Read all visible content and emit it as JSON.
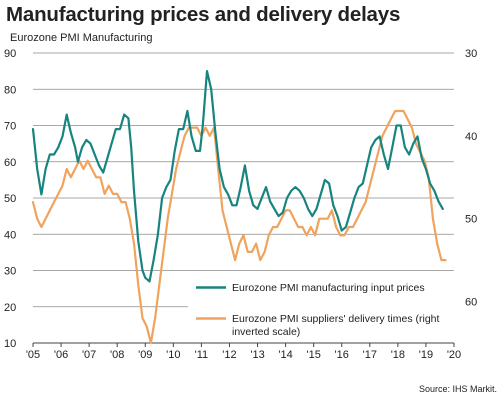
{
  "title": "Manufacturing prices and delivery delays",
  "subtitle": "Eurozone PMI Manufacturing",
  "source": "Source: IHS Markit.",
  "colors": {
    "input_prices": "#17847f",
    "delivery_times": "#f0a35e",
    "grid": "#8a8a8a",
    "axis": "#444444"
  },
  "chart_data": {
    "type": "line",
    "x_ticks": [
      "'05",
      "'06",
      "'07",
      "'08",
      "'09",
      "'10",
      "'11",
      "'12",
      "'13",
      "'14",
      "'15",
      "'16",
      "'17",
      "'18",
      "'19",
      "'20"
    ],
    "ylim_left": [
      10,
      90
    ],
    "y_ticks_left": [
      10,
      20,
      30,
      40,
      50,
      60,
      70,
      80,
      90
    ],
    "ylim_right_inverted": [
      30,
      65
    ],
    "y_ticks_right": [
      30,
      40,
      50,
      60
    ],
    "grid": true,
    "legend_position": "bottom-right",
    "series": [
      {
        "name": "Eurozone PMI manufacturing input prices",
        "axis": "left",
        "x": [
          2005.0,
          2005.15,
          2005.3,
          2005.45,
          2005.6,
          2005.75,
          2005.9,
          2006.05,
          2006.2,
          2006.35,
          2006.5,
          2006.6,
          2006.75,
          2006.9,
          2007.05,
          2007.2,
          2007.35,
          2007.5,
          2007.65,
          2007.8,
          2007.95,
          2008.1,
          2008.25,
          2008.4,
          2008.5,
          2008.6,
          2008.75,
          2008.9,
          2009.0,
          2009.15,
          2009.3,
          2009.45,
          2009.6,
          2009.75,
          2009.9,
          2010.05,
          2010.2,
          2010.35,
          2010.5,
          2010.65,
          2010.8,
          2010.95,
          2011.05,
          2011.2,
          2011.35,
          2011.5,
          2011.65,
          2011.8,
          2011.95,
          2012.1,
          2012.25,
          2012.4,
          2012.55,
          2012.7,
          2012.85,
          2013.0,
          2013.15,
          2013.3,
          2013.45,
          2013.6,
          2013.75,
          2013.9,
          2014.05,
          2014.2,
          2014.35,
          2014.5,
          2014.65,
          2014.8,
          2014.95,
          2015.1,
          2015.25,
          2015.4,
          2015.55,
          2015.7,
          2015.85,
          2016.0,
          2016.15,
          2016.3,
          2016.45,
          2016.6,
          2016.75,
          2016.9,
          2017.05,
          2017.2,
          2017.35,
          2017.5,
          2017.65,
          2017.8,
          2017.95,
          2018.1,
          2018.25,
          2018.4,
          2018.55,
          2018.7,
          2018.85,
          2019.0,
          2019.15,
          2019.3,
          2019.45,
          2019.6
        ],
        "values": [
          69,
          58,
          51,
          58,
          62,
          62,
          64,
          67,
          73,
          68,
          64,
          60,
          64,
          66,
          65,
          62,
          59,
          57,
          61,
          65,
          69,
          69,
          73,
          72,
          64,
          52,
          38,
          30,
          28,
          27,
          33,
          40,
          50,
          53,
          55,
          63,
          69,
          69,
          74,
          67,
          63,
          63,
          70,
          85,
          80,
          68,
          58,
          53,
          51,
          48,
          48,
          53,
          59,
          52,
          48,
          47,
          50,
          53,
          49,
          47,
          45,
          46,
          50,
          52,
          53,
          52,
          50,
          47,
          45,
          47,
          51,
          55,
          54,
          48,
          45,
          41,
          42,
          46,
          50,
          53,
          54,
          59,
          64,
          66,
          67,
          62,
          58,
          64,
          70,
          70,
          64,
          62,
          65,
          67,
          61,
          58,
          54,
          52,
          49,
          47
        ]
      },
      {
        "name": "Eurozone PMI suppliers' delivery times (right inverted scale)",
        "axis": "right",
        "x": [
          2005.0,
          2005.15,
          2005.3,
          2005.45,
          2005.6,
          2005.75,
          2005.9,
          2006.05,
          2006.2,
          2006.35,
          2006.5,
          2006.65,
          2006.8,
          2006.95,
          2007.1,
          2007.25,
          2007.4,
          2007.55,
          2007.7,
          2007.85,
          2008.0,
          2008.15,
          2008.3,
          2008.45,
          2008.6,
          2008.75,
          2008.9,
          2009.05,
          2009.2,
          2009.35,
          2009.5,
          2009.65,
          2009.8,
          2009.95,
          2010.1,
          2010.25,
          2010.4,
          2010.55,
          2010.7,
          2010.85,
          2011.0,
          2011.15,
          2011.3,
          2011.45,
          2011.6,
          2011.75,
          2011.9,
          2012.05,
          2012.2,
          2012.35,
          2012.5,
          2012.65,
          2012.8,
          2012.95,
          2013.1,
          2013.25,
          2013.4,
          2013.55,
          2013.7,
          2013.85,
          2014.0,
          2014.15,
          2014.3,
          2014.45,
          2014.6,
          2014.75,
          2014.9,
          2015.05,
          2015.2,
          2015.35,
          2015.5,
          2015.65,
          2015.8,
          2015.95,
          2016.1,
          2016.25,
          2016.4,
          2016.55,
          2016.7,
          2016.85,
          2017.0,
          2017.15,
          2017.3,
          2017.45,
          2017.6,
          2017.75,
          2017.9,
          2018.05,
          2018.2,
          2018.35,
          2018.5,
          2018.65,
          2018.8,
          2018.95,
          2019.1,
          2019.25,
          2019.4,
          2019.55,
          2019.7
        ],
        "values": [
          48,
          50,
          51,
          50,
          49,
          48,
          47,
          46,
          44,
          45,
          44,
          43,
          44,
          43,
          44,
          45,
          45,
          47,
          46,
          47,
          47,
          48,
          48,
          50,
          53,
          58,
          62,
          63,
          65,
          62,
          58,
          54,
          50,
          47,
          44,
          42,
          40,
          39,
          39,
          39,
          40,
          39,
          40,
          39,
          44,
          49,
          51,
          53,
          55,
          53,
          52,
          54,
          54,
          53,
          55,
          54,
          52,
          51,
          51,
          50,
          49,
          49,
          50,
          51,
          51,
          52,
          51,
          52,
          50,
          50,
          50,
          49,
          51,
          52,
          52,
          51,
          51,
          50,
          49,
          48,
          46,
          44,
          42,
          40,
          39,
          38,
          37,
          37,
          37,
          38,
          39,
          41,
          42,
          43,
          45,
          50,
          53,
          55,
          55
        ]
      }
    ]
  }
}
